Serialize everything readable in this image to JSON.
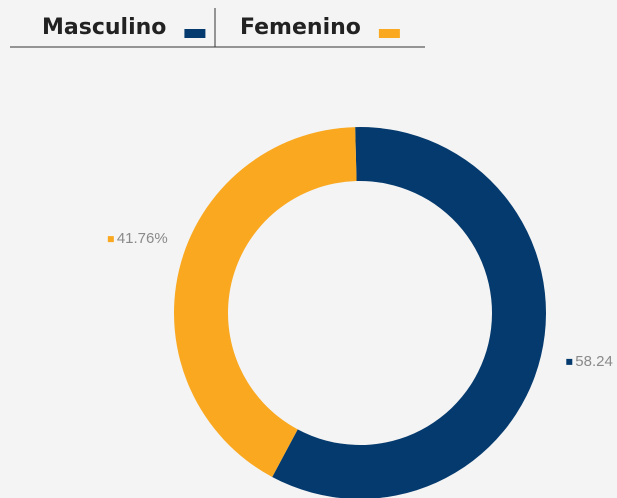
{
  "chart_data": {
    "type": "pie",
    "categories": [
      "Masculino",
      "Femenino"
    ],
    "values": [
      58.24,
      41.76
    ],
    "value_labels": [
      "58.24",
      "41.76%"
    ],
    "colors": [
      "#053a6e",
      "#f9a820"
    ],
    "donut": true
  }
}
